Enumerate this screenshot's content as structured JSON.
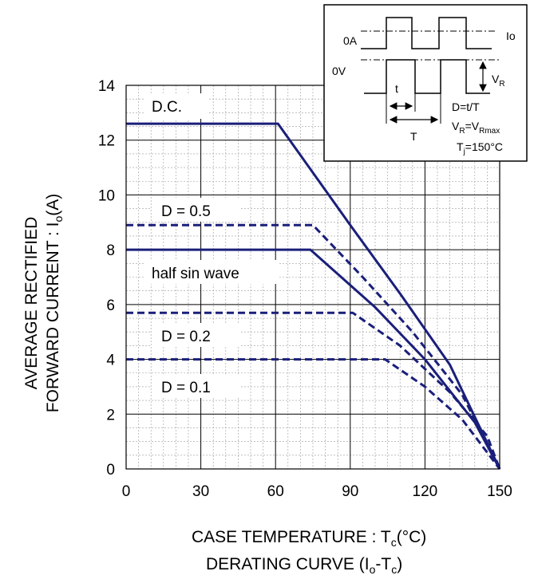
{
  "chart_data": {
    "type": "line",
    "title": "",
    "xlabel": "CASE TEMPERATURE : Tc(°C)",
    "xlabel_main": "CASE TEMPERATURE : T",
    "xlabel_sub": "c",
    "xlabel_tail": "(°C)",
    "ylabel_line1": "AVERAGE RECTIFIED",
    "ylabel_line2_main": "FORWARD CURRENT : I",
    "ylabel_line2_sub": "o",
    "ylabel_line2_tail": "(A)",
    "caption_main": "DERATING CURVE (I",
    "caption_sub1": "o",
    "caption_mid": "-T",
    "caption_sub2": "c",
    "caption_tail": ")",
    "xlim": [
      0,
      150
    ],
    "ylim": [
      0,
      14
    ],
    "x_ticks": [
      "0",
      "30",
      "60",
      "90",
      "120",
      "150"
    ],
    "y_ticks": [
      "0",
      "2",
      "4",
      "6",
      "8",
      "10",
      "12",
      "14"
    ],
    "grid": true,
    "series": [
      {
        "name": "D.C.",
        "style": "solid",
        "points": [
          [
            0,
            12.6
          ],
          [
            61,
            12.6
          ],
          [
            90,
            8.9
          ],
          [
            110,
            6.4
          ],
          [
            130,
            3.8
          ],
          [
            150,
            0
          ]
        ]
      },
      {
        "name": "D = 0.5",
        "style": "dashed",
        "points": [
          [
            0,
            8.9
          ],
          [
            75,
            8.9
          ],
          [
            95,
            7.0
          ],
          [
            115,
            5.0
          ],
          [
            135,
            2.7
          ],
          [
            150,
            0
          ]
        ]
      },
      {
        "name": "half sin wave",
        "style": "solid",
        "points": [
          [
            0,
            8.0
          ],
          [
            74,
            8.0
          ],
          [
            100,
            5.9
          ],
          [
            120,
            4.0
          ],
          [
            140,
            1.7
          ],
          [
            150,
            0
          ]
        ]
      },
      {
        "name": "D = 0.2",
        "style": "dashed",
        "points": [
          [
            0,
            5.7
          ],
          [
            91,
            5.7
          ],
          [
            110,
            4.5
          ],
          [
            130,
            2.8
          ],
          [
            145,
            1.2
          ],
          [
            150,
            0
          ]
        ]
      },
      {
        "name": "D = 0.1",
        "style": "dashed",
        "points": [
          [
            0,
            4.0
          ],
          [
            104,
            4.0
          ],
          [
            120,
            3.0
          ],
          [
            135,
            1.8
          ],
          [
            150,
            0
          ]
        ]
      }
    ],
    "series_labels": [
      "D.C.",
      "D = 0.5",
      "half sin wave",
      "D = 0.2",
      "D = 0.1"
    ],
    "line_color": "#1a1f7a"
  },
  "inset": {
    "label_0A": "0A",
    "label_0V": "0V",
    "label_Io": "Io",
    "label_VR_main": "V",
    "label_VR_sub": "R",
    "label_t": "t",
    "label_T": "T",
    "eq_duty": "D=t/T",
    "eq_vr_main": "V",
    "eq_vr_sub1": "R",
    "eq_vr_mid": "=V",
    "eq_vr_sub2": "Rmax",
    "eq_tj_main": "T",
    "eq_tj_sub": "j",
    "eq_tj_tail": "=150°C"
  }
}
